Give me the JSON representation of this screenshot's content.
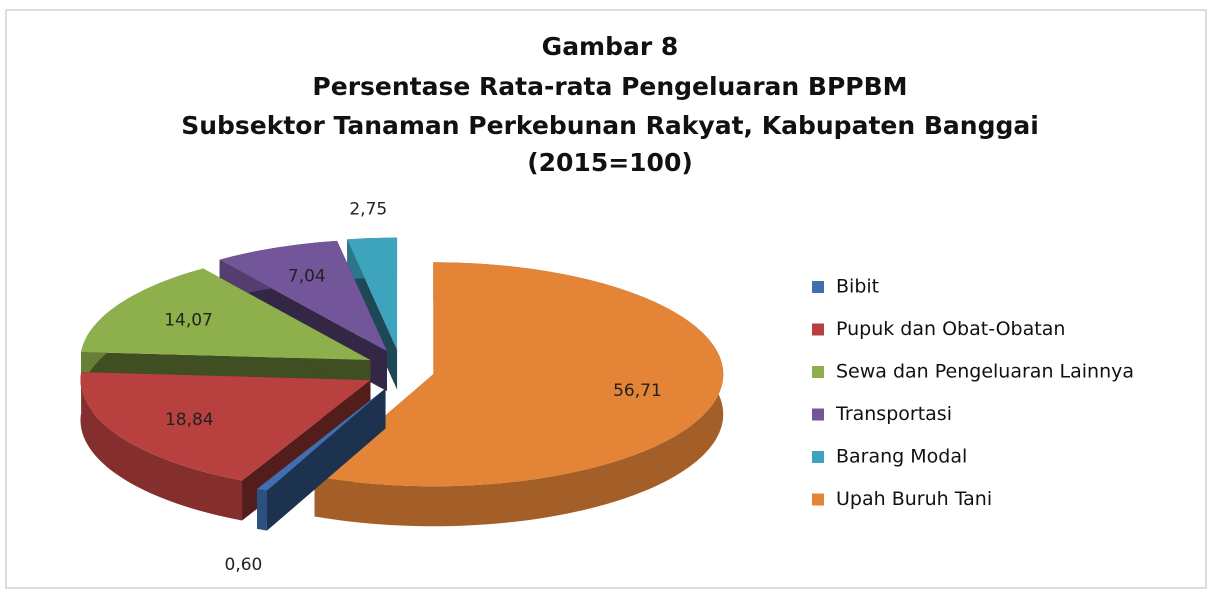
{
  "chart_data": {
    "type": "pie",
    "title": [
      "Gambar 8",
      "Persentase Rata-rata Pengeluaran BPPBM",
      "Subsektor Tanaman Perkebunan Rakyat, Kabupaten Banggai",
      "(2015=100)"
    ],
    "categories": [
      "Bibit",
      "Pupuk dan Obat-Obatan",
      "Sewa dan Pengeluaran Lainnya",
      "Transportasi",
      "Barang Modal",
      "Upah Buruh Tani"
    ],
    "values": [
      0.6,
      18.84,
      14.07,
      7.04,
      2.75,
      56.71
    ],
    "value_labels": [
      "0,60",
      "18,84",
      "14,07",
      "7,04",
      "2,75",
      "56,71"
    ],
    "colors": [
      "#3f6fb0",
      "#b8413f",
      "#8db04c",
      "#73569a",
      "#3ea3bd",
      "#e38436"
    ],
    "legend": "right"
  }
}
